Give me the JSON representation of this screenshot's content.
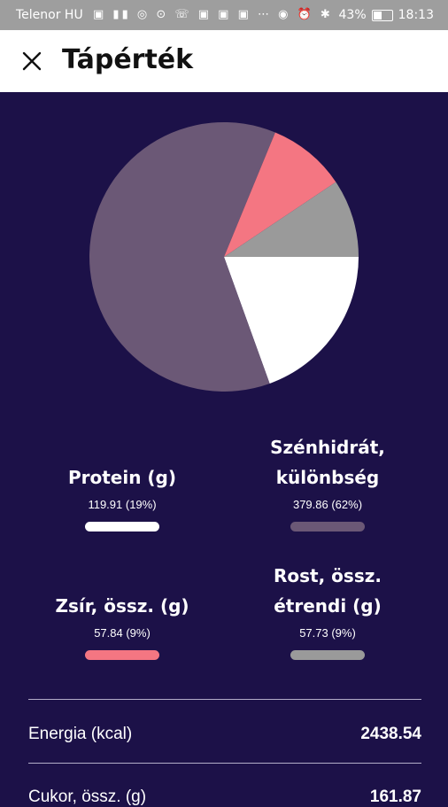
{
  "status_bar": {
    "carrier": "Telenor HU",
    "time": "18:13",
    "battery": "43%",
    "battery_level": 0.43
  },
  "header": {
    "title": "Tápérték",
    "close_icon": "close-icon"
  },
  "chart_data": {
    "type": "pie",
    "slices": [
      {
        "label": "Protein (g)",
        "value": 119.91,
        "percent": 19,
        "color": "#ffffff"
      },
      {
        "label": "Szénhidrát, különbség",
        "value": 379.86,
        "percent": 62,
        "color": "#6b5876"
      },
      {
        "label": "Zsír, össz. (g)",
        "value": 57.84,
        "percent": 9,
        "color": "#f47682"
      },
      {
        "label": "Rost, össz. étrendi (g)",
        "value": 57.73,
        "percent": 9,
        "color": "#9a9a9a"
      }
    ]
  },
  "legend": [
    {
      "label_lines": [
        "Protein (g)"
      ],
      "value_text": "119.91 (19%)",
      "color": "#ffffff"
    },
    {
      "label_lines": [
        "Szénhidrát,",
        "különbség"
      ],
      "value_text": "379.86 (62%)",
      "color": "#6b5876"
    },
    {
      "label_lines": [
        "Zsír, össz. (g)"
      ],
      "value_text": "57.84 (9%)",
      "color": "#f47682"
    },
    {
      "label_lines": [
        "Rost, össz.",
        "étrendi (g)"
      ],
      "value_text": "57.73 (9%)",
      "color": "#9a9a9a"
    }
  ],
  "nutrients": [
    {
      "label": "Energia (kcal)",
      "value": "2438.54"
    },
    {
      "label": "Cukor, össz. (g)",
      "value": "161.87"
    }
  ]
}
